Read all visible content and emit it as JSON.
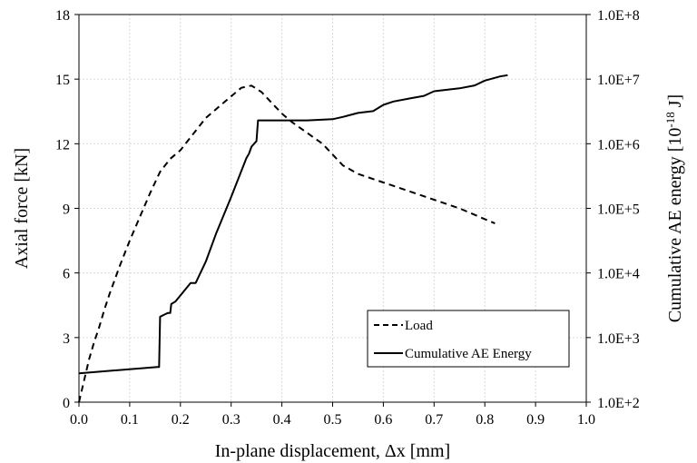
{
  "chart_data": {
    "type": "line",
    "title": "",
    "xlabel": "In-plane displacement, Δx [mm]",
    "ylabel_left": "Axial force [kN]",
    "ylabel_right": "Cumulative AE energy [10^-18 J]",
    "ylabel_right_parts": {
      "prefix": "Cumulative AE energy [10",
      "exponent": "-18",
      "suffix": " J]"
    },
    "xlim": [
      0.0,
      1.0
    ],
    "ylim_left": [
      0,
      18
    ],
    "ylim_right": [
      100,
      100000000
    ],
    "right_axis_scale": "log",
    "grid": true,
    "legend_position": "bottom-right",
    "x_ticks": [
      "0.0",
      "0.1",
      "0.2",
      "0.3",
      "0.4",
      "0.5",
      "0.6",
      "0.7",
      "0.8",
      "0.9",
      "1.0"
    ],
    "y_left_ticks": [
      "0",
      "3",
      "6",
      "9",
      "12",
      "15",
      "18"
    ],
    "y_right_ticks": [
      "1.0E+2",
      "1.0E+3",
      "1.0E+4",
      "1.0E+5",
      "1.0E+6",
      "1.0E+7",
      "1.0E+8"
    ],
    "series": [
      {
        "name": "Load",
        "axis": "left",
        "style": "dashed",
        "points": [
          [
            0.0,
            0.0
          ],
          [
            0.01,
            1.0
          ],
          [
            0.02,
            2.0
          ],
          [
            0.03,
            2.8
          ],
          [
            0.04,
            3.5
          ],
          [
            0.05,
            4.3
          ],
          [
            0.06,
            5.0
          ],
          [
            0.08,
            6.3
          ],
          [
            0.1,
            7.5
          ],
          [
            0.12,
            8.6
          ],
          [
            0.14,
            9.7
          ],
          [
            0.16,
            10.7
          ],
          [
            0.18,
            11.3
          ],
          [
            0.2,
            11.7
          ],
          [
            0.22,
            12.3
          ],
          [
            0.25,
            13.2
          ],
          [
            0.28,
            13.8
          ],
          [
            0.3,
            14.2
          ],
          [
            0.32,
            14.6
          ],
          [
            0.34,
            14.7
          ],
          [
            0.36,
            14.4
          ],
          [
            0.38,
            13.9
          ],
          [
            0.4,
            13.4
          ],
          [
            0.42,
            13.0
          ],
          [
            0.45,
            12.5
          ],
          [
            0.48,
            12.0
          ],
          [
            0.5,
            11.5
          ],
          [
            0.52,
            11.0
          ],
          [
            0.55,
            10.6
          ],
          [
            0.6,
            10.2
          ],
          [
            0.65,
            9.8
          ],
          [
            0.7,
            9.4
          ],
          [
            0.75,
            9.0
          ],
          [
            0.8,
            8.5
          ],
          [
            0.82,
            8.3
          ]
        ]
      },
      {
        "name": "Cumulative AE Energy",
        "axis": "right",
        "style": "solid",
        "points": [
          [
            0.0,
            280
          ],
          [
            0.155,
            350
          ],
          [
            0.158,
            350
          ],
          [
            0.16,
            2100
          ],
          [
            0.17,
            2300
          ],
          [
            0.175,
            2400
          ],
          [
            0.18,
            2400
          ],
          [
            0.182,
            3300
          ],
          [
            0.19,
            3600
          ],
          [
            0.22,
            7000
          ],
          [
            0.23,
            7000
          ],
          [
            0.25,
            15000
          ],
          [
            0.27,
            40000
          ],
          [
            0.3,
            150000
          ],
          [
            0.33,
            600000
          ],
          [
            0.335,
            700000
          ],
          [
            0.34,
            900000
          ],
          [
            0.35,
            1100000
          ],
          [
            0.353,
            2300000
          ],
          [
            0.4,
            2300000
          ],
          [
            0.45,
            2300000
          ],
          [
            0.5,
            2400000
          ],
          [
            0.52,
            2600000
          ],
          [
            0.55,
            3000000
          ],
          [
            0.58,
            3200000
          ],
          [
            0.6,
            4000000
          ],
          [
            0.62,
            4500000
          ],
          [
            0.65,
            5000000
          ],
          [
            0.68,
            5500000
          ],
          [
            0.7,
            6500000
          ],
          [
            0.75,
            7200000
          ],
          [
            0.78,
            8000000
          ],
          [
            0.8,
            9500000
          ],
          [
            0.83,
            11000000
          ],
          [
            0.845,
            11500000
          ]
        ]
      }
    ]
  }
}
